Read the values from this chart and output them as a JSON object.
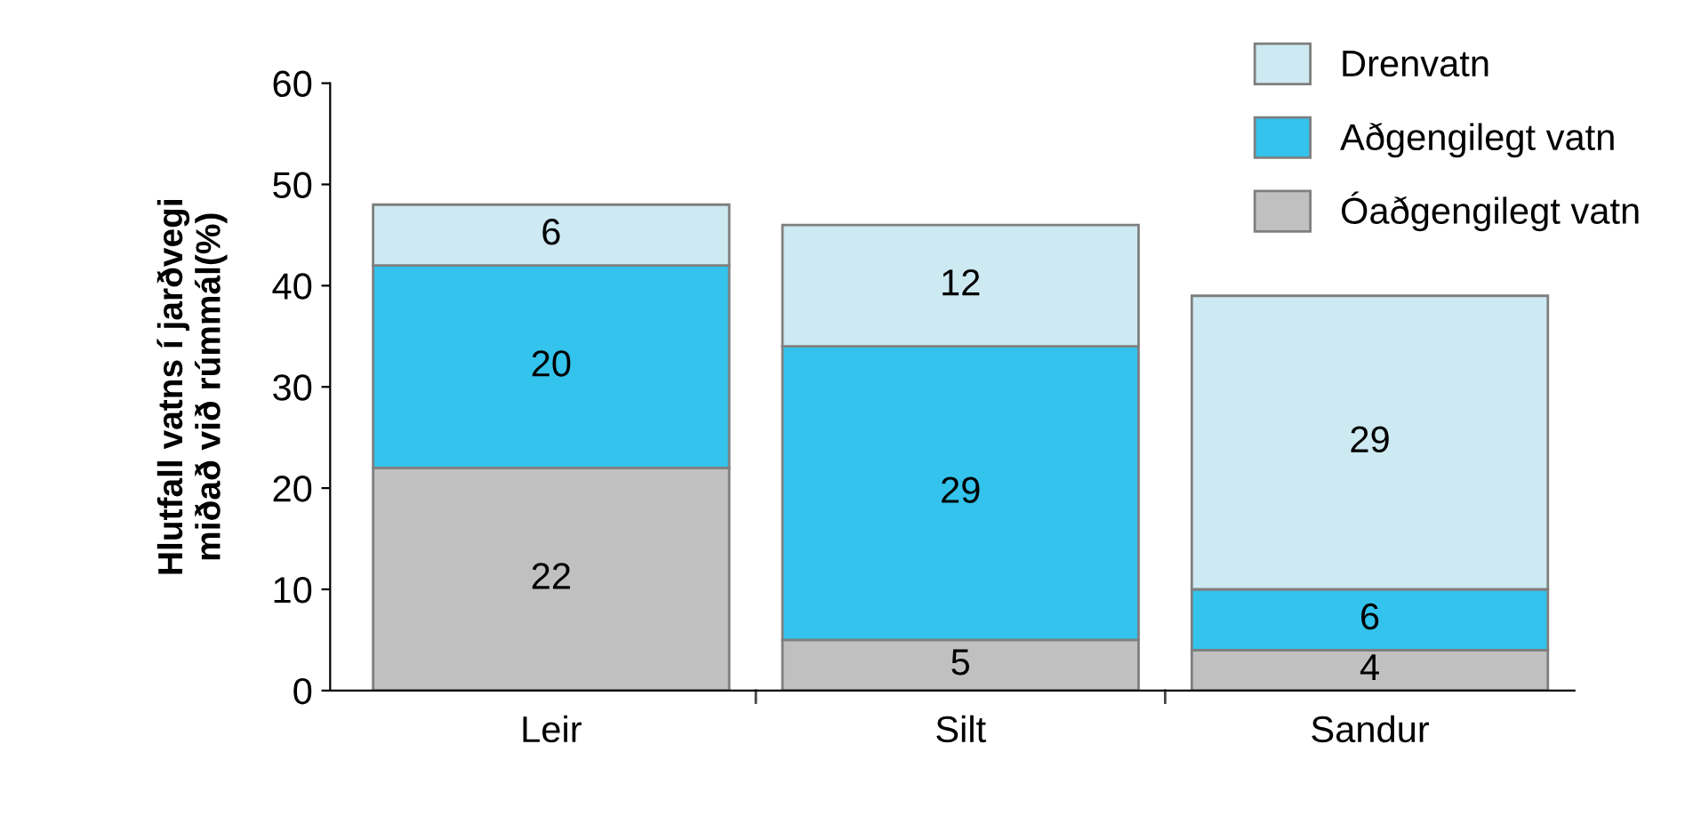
{
  "chart_data": {
    "type": "bar",
    "stacked": true,
    "ylabel": "Hlutfall vatns í jarðvegi\nmiðað við rúmmál(%)",
    "categories": [
      "Leir",
      "Silt",
      "Sandur"
    ],
    "series": [
      {
        "name": "Óaðgengilegt vatn",
        "color": "#c0c0c0",
        "values": [
          22,
          5,
          4
        ]
      },
      {
        "name": "Aðgengilegt vatn",
        "color": "#33c3ec",
        "values": [
          20,
          29,
          6
        ]
      },
      {
        "name": "Drenvatn",
        "color": "#cde9f1",
        "values": [
          6,
          12,
          29
        ]
      }
    ],
    "ylim": [
      0,
      60
    ],
    "yticks": [
      0,
      10,
      20,
      30,
      40,
      50,
      60
    ],
    "grid": false,
    "legend": "top right",
    "data_labels": true
  }
}
